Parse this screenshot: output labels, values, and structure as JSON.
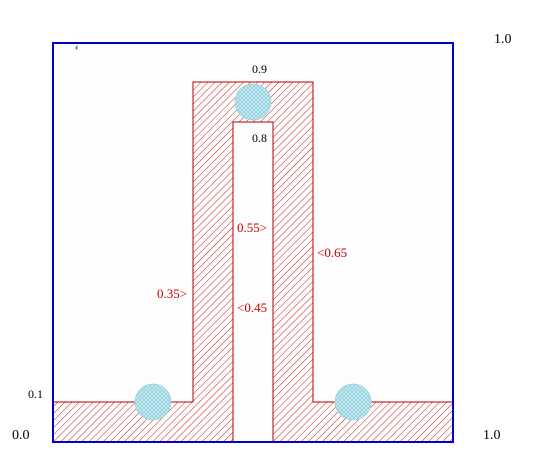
{
  "corner_labels": {
    "top_right": "1.0",
    "bottom_left": "0.0",
    "bottom_right": "1.0",
    "left_mid": "0.1"
  },
  "level_labels": {
    "top": "0.9",
    "inner_top": "0.8"
  },
  "edge_labels": {
    "outer_left": "0.35>",
    "inner_left": "0.55>",
    "inner_right": "<0.45",
    "outer_right": "<0.65"
  },
  "colors": {
    "frame": "#0000cc",
    "region_stroke": "#bb0000",
    "hatch": "#cc2222",
    "circle_fill": "#b8e0ea",
    "circle_mesh": "#7cc6d6",
    "background": "#fdfdfd",
    "marker": "#2a8ca8"
  },
  "icons": {
    "marker": "dot-marker-icon",
    "circle": "hatched-circle-icon"
  }
}
